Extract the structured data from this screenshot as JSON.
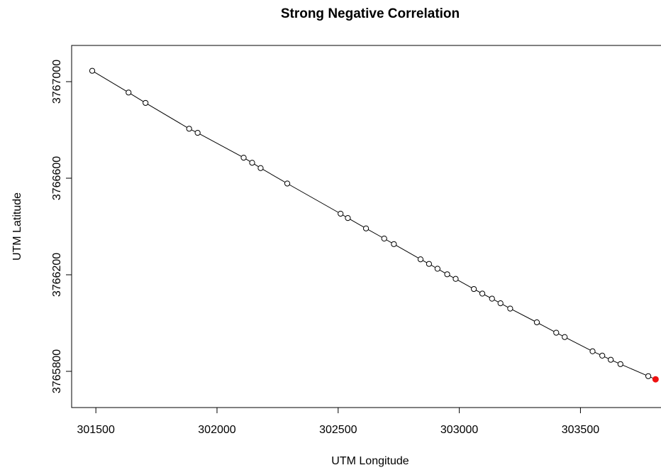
{
  "chart_data": {
    "type": "scatter",
    "title": "Strong Negative Correlation",
    "xlabel": "UTM Longitude",
    "ylabel": "UTM Latitude",
    "xlim": [
      301400,
      303850
    ],
    "ylim": [
      3765650,
      3767150
    ],
    "x_ticks": [
      301500,
      302000,
      302500,
      303000,
      303500
    ],
    "x_tick_labels": [
      "301500",
      "302000",
      "302500",
      "303000",
      "303500"
    ],
    "y_ticks": [
      3765800,
      3766200,
      3766600,
      3767000
    ],
    "y_tick_labels": [
      "3765800",
      "3766200",
      "3766600",
      "3767000"
    ],
    "grid": false,
    "connect_points": true,
    "series": [
      {
        "marker": "open-circle",
        "color": "#000000",
        "points": [
          {
            "x": 301485,
            "y": 3767045
          },
          {
            "x": 301635,
            "y": 3766955
          },
          {
            "x": 301705,
            "y": 3766912
          },
          {
            "x": 301885,
            "y": 3766805
          },
          {
            "x": 301920,
            "y": 3766788
          },
          {
            "x": 302110,
            "y": 3766685
          },
          {
            "x": 302145,
            "y": 3766664
          },
          {
            "x": 302180,
            "y": 3766642
          },
          {
            "x": 302290,
            "y": 3766578
          },
          {
            "x": 302510,
            "y": 3766453
          },
          {
            "x": 302540,
            "y": 3766435
          },
          {
            "x": 302615,
            "y": 3766392
          },
          {
            "x": 302690,
            "y": 3766350
          },
          {
            "x": 302730,
            "y": 3766327
          },
          {
            "x": 302840,
            "y": 3766264
          },
          {
            "x": 302875,
            "y": 3766245
          },
          {
            "x": 302910,
            "y": 3766225
          },
          {
            "x": 302950,
            "y": 3766202
          },
          {
            "x": 302985,
            "y": 3766183
          },
          {
            "x": 303060,
            "y": 3766141
          },
          {
            "x": 303095,
            "y": 3766122
          },
          {
            "x": 303135,
            "y": 3766101
          },
          {
            "x": 303170,
            "y": 3766082
          },
          {
            "x": 303210,
            "y": 3766060
          },
          {
            "x": 303320,
            "y": 3766003
          },
          {
            "x": 303400,
            "y": 3765960
          },
          {
            "x": 303435,
            "y": 3765942
          },
          {
            "x": 303550,
            "y": 3765883
          },
          {
            "x": 303590,
            "y": 3765865
          },
          {
            "x": 303625,
            "y": 3765848
          },
          {
            "x": 303665,
            "y": 3765830
          },
          {
            "x": 303780,
            "y": 3765780
          }
        ]
      },
      {
        "marker": "filled-circle",
        "color": "#ee1111",
        "points": [
          {
            "x": 303810,
            "y": 3765767
          }
        ]
      }
    ]
  }
}
